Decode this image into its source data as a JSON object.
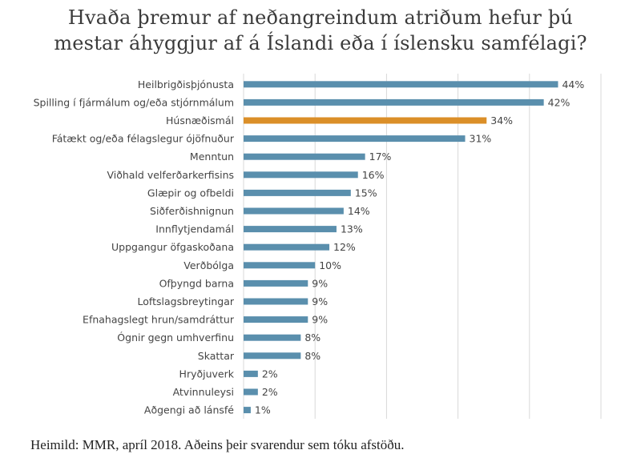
{
  "chart_data": {
    "type": "bar",
    "orientation": "horizontal",
    "title_line1": "Hvaða þremur af neðangreindum atriðum hefur þú",
    "title_line2": "mestar áhyggjur af á Íslandi eða í íslensku samfélagi?",
    "source": "Heimild: MMR, apríl 2018. Aðeins þeir svarendur sem tóku afstöðu.",
    "categories": [
      "Heilbrigðisþjónusta",
      "Spilling í fjármálum og/eða stjórnmálum",
      "Húsnæðismál",
      "Fátækt og/eða félagslegur ójöfnuður",
      "Menntun",
      "Viðhald velferðarkerfisins",
      "Glæpir og ofbeldi",
      "Siðferðishnignun",
      "Innflytjendamál",
      "Uppgangur öfgaskoðana",
      "Verðbólga",
      "Ofþyngd barna",
      "Loftslagsbreytingar",
      "Efnahagslegt hrun/samdráttur",
      "Ógnir gegn umhverfinu",
      "Skattar",
      "Hryðjuverk",
      "Atvinnuleysi",
      "Aðgengi að lánsfé"
    ],
    "values": [
      44,
      42,
      34,
      31,
      17,
      16,
      15,
      14,
      13,
      12,
      10,
      9,
      9,
      9,
      8,
      8,
      2,
      2,
      1
    ],
    "value_labels": [
      "44%",
      "42%",
      "34%",
      "31%",
      "17%",
      "16%",
      "15%",
      "14%",
      "13%",
      "12%",
      "10%",
      "9%",
      "9%",
      "9%",
      "8%",
      "8%",
      "2%",
      "2%",
      "1%"
    ],
    "highlight_index": 2,
    "xlim": [
      0,
      50
    ],
    "grid": "vertical",
    "legend": "none",
    "colors": {
      "bar": "#5a8fad",
      "highlight": "#db8f28",
      "grid": "#d9d9d9"
    }
  }
}
